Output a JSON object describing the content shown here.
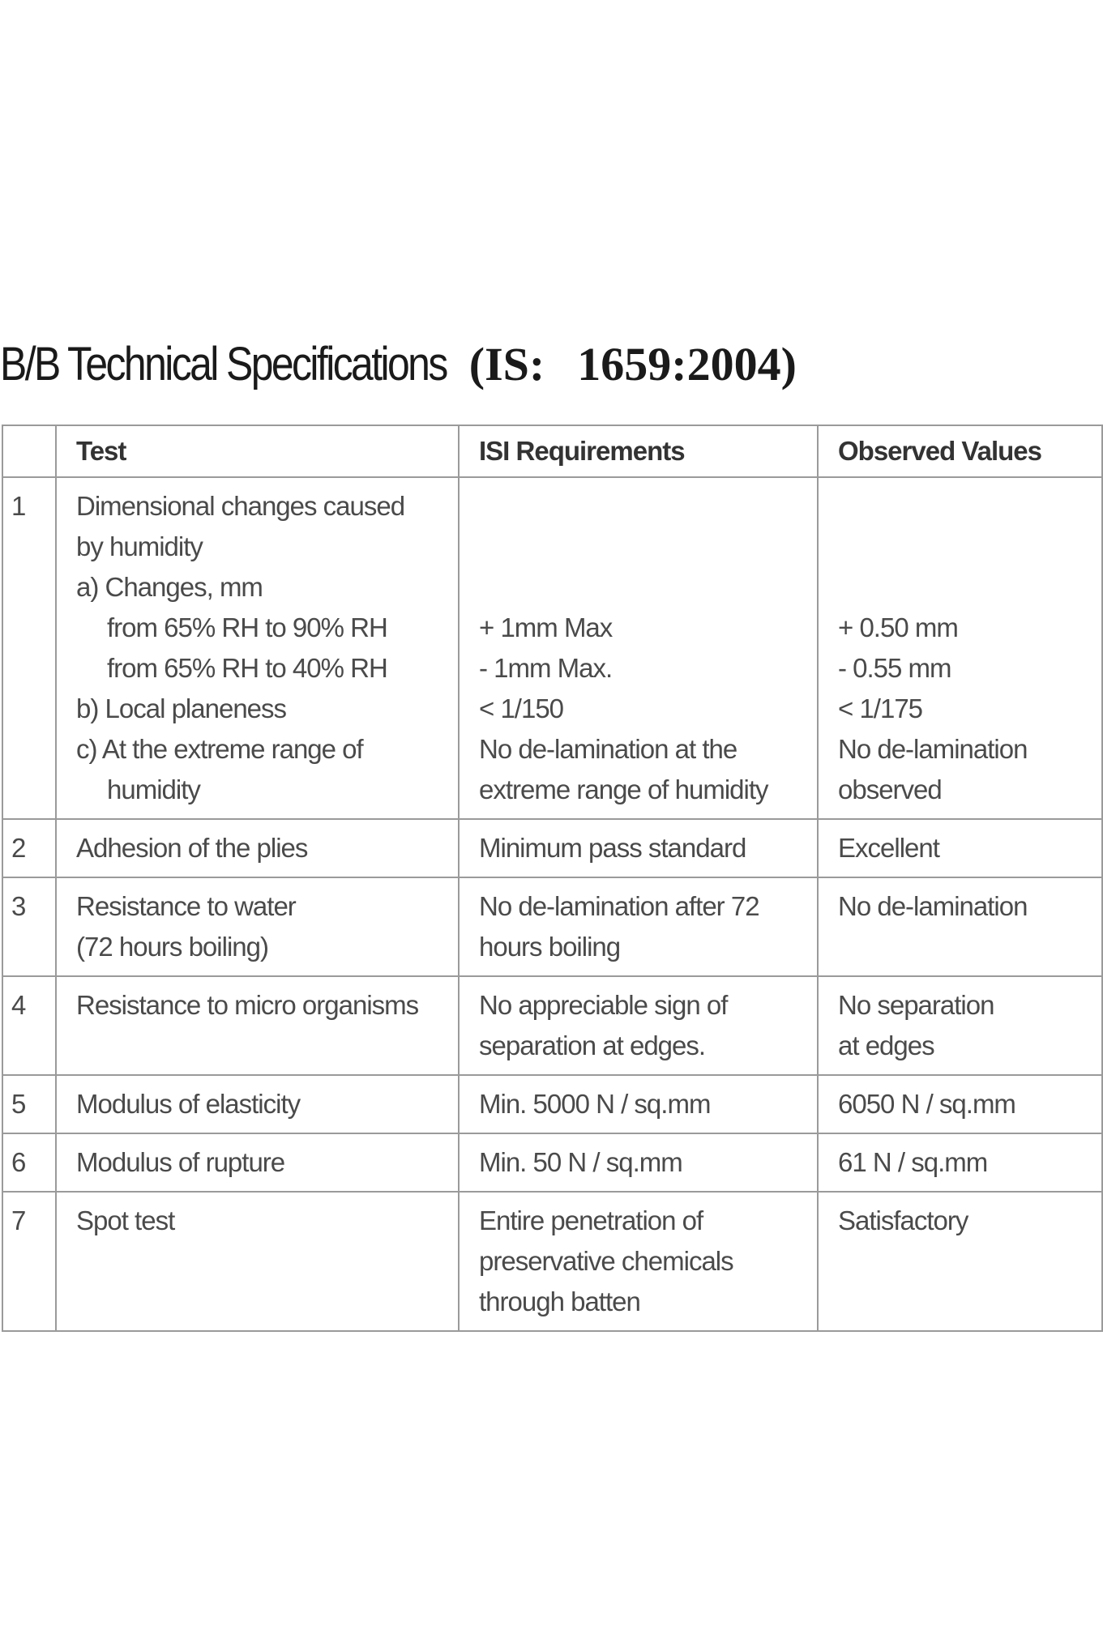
{
  "title": {
    "main": "B/B Technical Specifications",
    "standard_prefix": "(IS:",
    "standard_suffix": "1659:2004)"
  },
  "table": {
    "headers": [
      "",
      "Test",
      "ISI  Requirements",
      "Observed Values"
    ],
    "rows": [
      {
        "no": "1",
        "test": [
          "Dimensional changes caused",
          "by humidity",
          "a)  Changes, mm",
          "from 65% RH to 90% RH",
          "from 65% RH to 40% RH",
          "b)  Local planeness",
          "c)  At the extreme range of",
          "humidity"
        ],
        "requirement": [
          "",
          "",
          "",
          "+ 1mm  Max",
          "-  1mm  Max.",
          "< 1/150",
          "No de-lamination at the",
          "extreme range of humidity"
        ],
        "observed": [
          "",
          "",
          "",
          "+ 0.50 mm",
          "-  0.55 mm",
          "< 1/175",
          "No de-lamination",
          "observed"
        ]
      },
      {
        "no": "2",
        "test": [
          "Adhesion of the plies"
        ],
        "requirement": [
          "Minimum pass standard"
        ],
        "observed": [
          "Excellent"
        ]
      },
      {
        "no": "3",
        "test": [
          "Resistance to water",
          "(72 hours boiling)"
        ],
        "requirement": [
          "No de-lamination after 72",
          "hours boiling"
        ],
        "observed": [
          "No de-lamination"
        ]
      },
      {
        "no": "4",
        "test": [
          "Resistance to micro organisms"
        ],
        "requirement": [
          "No appreciable sign of",
          "separation at edges."
        ],
        "observed": [
          "No separation",
          "at edges"
        ]
      },
      {
        "no": "5",
        "test": [
          "Modulus of elasticity"
        ],
        "requirement": [
          "Min. 5000 N / sq.mm"
        ],
        "observed": [
          "6050 N / sq.mm"
        ]
      },
      {
        "no": "6",
        "test": [
          "Modulus of rupture"
        ],
        "requirement": [
          "Min. 50 N / sq.mm"
        ],
        "observed": [
          "61 N / sq.mm"
        ]
      },
      {
        "no": "7",
        "test": [
          "Spot test"
        ],
        "requirement": [
          "Entire penetration of",
          "preservative chemicals",
          "through batten"
        ],
        "observed": [
          "Satisfactory"
        ]
      }
    ]
  }
}
